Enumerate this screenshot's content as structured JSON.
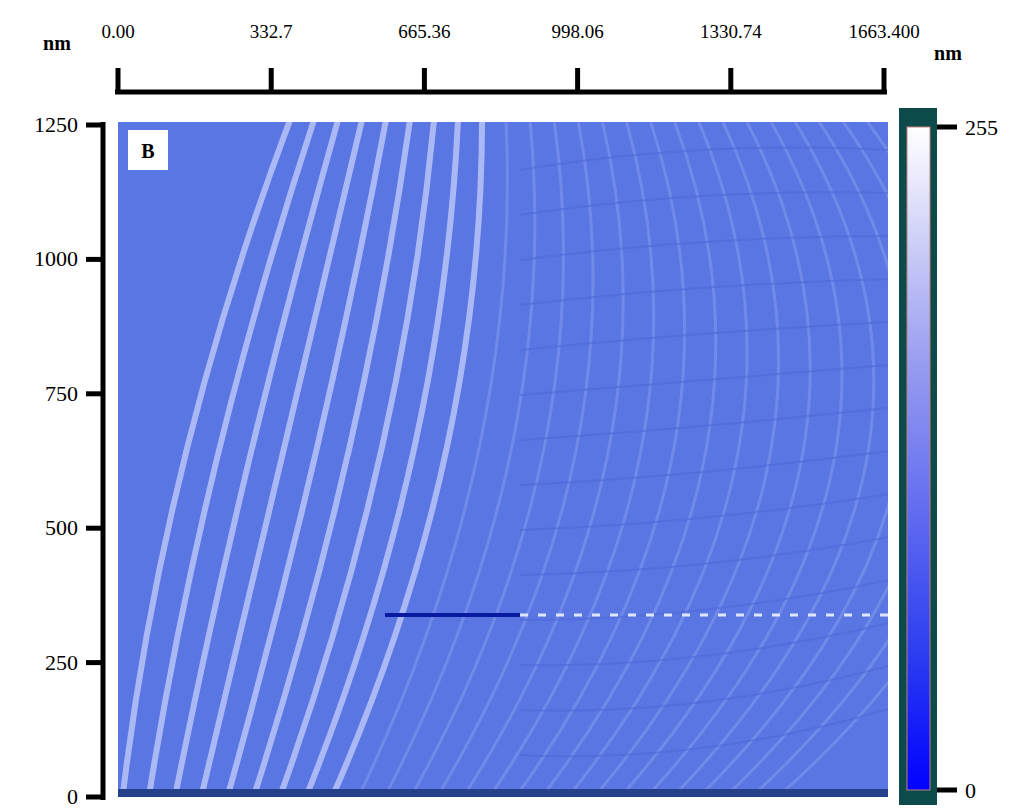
{
  "chart_data": {
    "type": "image",
    "panel": "B",
    "x_label": "nm",
    "y_label": "nm",
    "xlim": [
      0,
      1663.4
    ],
    "xticks": [
      {
        "value": 0,
        "label": "0.00"
      },
      332.7,
      665.36,
      998.06,
      1330.74,
      {
        "value": 1663.4,
        "label": "1663.400"
      }
    ],
    "ylim": [
      0,
      1250
    ],
    "yticks": [
      0,
      250,
      500,
      750,
      1000,
      1250
    ],
    "colorbar": {
      "range": [
        0,
        255
      ],
      "ticks": [
        0,
        255
      ]
    }
  }
}
